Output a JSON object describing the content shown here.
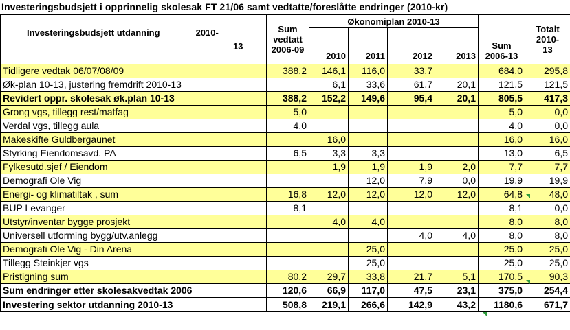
{
  "title": "Investeringsbudsjett i opprinnelig skolesak FT 21/06 samt vedtatte/foreslåtte  endringer (2010-kr)",
  "header": {
    "label_main": "Investeringsbudsjett utdanning",
    "label_year": "2010-",
    "label_line2": "13",
    "sum_vedtatt": [
      "Sum",
      "vedtatt",
      "2006-09"
    ],
    "okonomiplan": "Økonomiplan 2010-13",
    "years": [
      "2010",
      "2011",
      "2012",
      "2013"
    ],
    "sum_2006_13": [
      "Sum",
      "2006-13"
    ],
    "totalt": [
      "Totalt",
      "2010-",
      "13"
    ]
  },
  "rows": [
    {
      "label": "Tidligere vedtak 06/07/08/09",
      "v": [
        "388,2",
        "146,1",
        "116,0",
        "33,7",
        "",
        "684,0",
        "295,8"
      ],
      "hl": true,
      "bold": false
    },
    {
      "label": "Øk-plan 10-13, justering fremdrift 2010-13",
      "v": [
        "",
        "6,1",
        "33,6",
        "61,7",
        "20,1",
        "121,5",
        "121,5"
      ],
      "hl": false,
      "bold": false
    },
    {
      "label": "Revidert oppr. skolesak øk.plan 10-13",
      "v": [
        "388,2",
        "152,2",
        "149,6",
        "95,4",
        "20,1",
        "805,5",
        "417,3"
      ],
      "hl": true,
      "bold": true
    },
    {
      "label": "Grong vgs, tillegg rest/matfag",
      "v": [
        "5,0",
        "",
        "",
        "",
        "",
        "5,0",
        "0,0"
      ],
      "hl": true,
      "bold": false
    },
    {
      "label": "Verdal vgs, tillegg aula",
      "v": [
        "4,0",
        "",
        "",
        "",
        "",
        "4,0",
        "0,0"
      ],
      "hl": false,
      "bold": false
    },
    {
      "label": "Makeskifte Guldbergaunet",
      "v": [
        "",
        "16,0",
        "",
        "",
        "",
        "16,0",
        "16,0"
      ],
      "hl": true,
      "bold": false
    },
    {
      "label": "Styrking Eiendomsavd. PA",
      "v": [
        "6,5",
        "3,3",
        "3,3",
        "",
        "",
        "13,0",
        "6,5"
      ],
      "hl": false,
      "bold": false
    },
    {
      "label": "Fylkesutd.sjef / Eiendom",
      "v": [
        "",
        "1,9",
        "1,9",
        "1,9",
        "2,0",
        "7,7",
        "7,7"
      ],
      "hl": true,
      "bold": false
    },
    {
      "label": "Demografi Ole Vig",
      "v": [
        "",
        "",
        "12,0",
        "7,9",
        "0,0",
        "19,9",
        "19,9"
      ],
      "hl": false,
      "bold": false
    },
    {
      "label": "Energi- og klimatiltak , sum",
      "v": [
        "16,8",
        "12,0",
        "12,0",
        "12,0",
        "12,0",
        "64,8",
        "48,0"
      ],
      "hl": true,
      "bold": false
    },
    {
      "label": "BUP Levanger",
      "v": [
        "8,1",
        "",
        "",
        "",
        "",
        "8,1",
        "0,0"
      ],
      "hl": false,
      "bold": false
    },
    {
      "label": "Utstyr/inventar bygge prosjekt",
      "v": [
        "",
        "4,0",
        "4,0",
        "",
        "",
        "8,0",
        "8,0"
      ],
      "hl": true,
      "bold": false
    },
    {
      "label": "Universell utforming bygg/utv.anlegg",
      "v": [
        "",
        "",
        "",
        "4,0",
        "4,0",
        "8,0",
        "8,0"
      ],
      "hl": false,
      "bold": false
    },
    {
      "label": "Demografi Ole Vig - Din Arena",
      "v": [
        "",
        "",
        "25,0",
        "",
        "",
        "25,0",
        "25,0"
      ],
      "hl": true,
      "bold": false
    },
    {
      "label": "Tillegg Steinkjer vgs",
      "v": [
        "",
        "",
        "25,0",
        "",
        "",
        "25,0",
        "25,0"
      ],
      "hl": false,
      "bold": false
    },
    {
      "label": "Pristigning sum",
      "v": [
        "80,2",
        "29,7",
        "33,8",
        "21,7",
        "5,1",
        "170,5",
        "90,3"
      ],
      "hl": true,
      "bold": false
    },
    {
      "label": "Sum endringer etter skolesakvedtak 2006",
      "v": [
        "120,6",
        "66,9",
        "117,0",
        "47,5",
        "23,1",
        "375,0",
        "254,4"
      ],
      "hl": false,
      "bold": true
    },
    {
      "label": "Investering sektor utdanning 2010-13",
      "v": [
        "508,8",
        "219,1",
        "266,6",
        "142,9",
        "43,2",
        "1180,6",
        "671,7"
      ],
      "hl": false,
      "bold": true
    }
  ],
  "comment_marker_color": "#2e9b3c"
}
